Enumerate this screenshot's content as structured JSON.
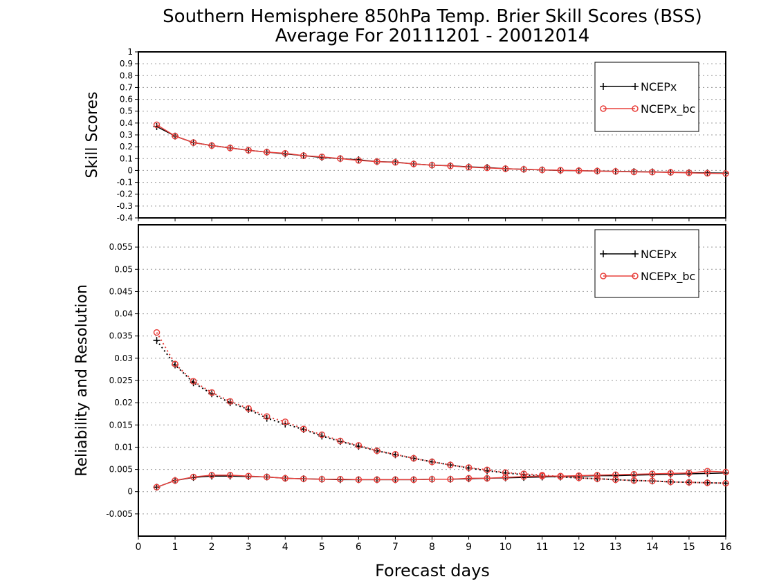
{
  "title_line1": "Southern Hemisphere 850hPa Temp. Brier Skill Scores (BSS)",
  "title_line2": "Average For 20111201 - 20012014",
  "xlabel": "Forecast days",
  "colors": {
    "ncep": "#000000",
    "bc": "#e8403c",
    "grid": "#999999"
  },
  "chart_data": [
    {
      "type": "line",
      "ylabel": "Skill Scores",
      "xlim": [
        0,
        16
      ],
      "ylim": [
        -0.4,
        1
      ],
      "xticks": [
        "0",
        "1",
        "2",
        "3",
        "4",
        "5",
        "6",
        "7",
        "8",
        "9",
        "10",
        "11",
        "12",
        "13",
        "14",
        "15",
        "16"
      ],
      "yticks": [
        "-0.4",
        "-0.3",
        "-0.2",
        "-0.1",
        "0",
        "0.1",
        "0.2",
        "0.3",
        "0.4",
        "0.5",
        "0.6",
        "0.7",
        "0.8",
        "0.9",
        "1"
      ],
      "grid": true,
      "legend": "top-right",
      "x": [
        0.5,
        1,
        1.5,
        2,
        2.5,
        3,
        3.5,
        4,
        4.5,
        5,
        5.5,
        6,
        6.5,
        7,
        7.5,
        8,
        8.5,
        9,
        9.5,
        10,
        10.5,
        11,
        11.5,
        12,
        12.5,
        13,
        13.5,
        14,
        14.5,
        15,
        15.5,
        16
      ],
      "series": [
        {
          "name": "NCEPx",
          "style": "solid",
          "marker": "plus",
          "values": [
            0.37,
            0.29,
            0.235,
            0.21,
            0.19,
            0.17,
            0.155,
            0.14,
            0.125,
            0.11,
            0.1,
            0.09,
            0.075,
            0.07,
            0.055,
            0.045,
            0.04,
            0.03,
            0.025,
            0.015,
            0.01,
            0.005,
            0.0,
            -0.002,
            -0.005,
            -0.008,
            -0.01,
            -0.012,
            -0.015,
            -0.018,
            -0.02,
            -0.022
          ]
        },
        {
          "name": "NCEPx_bc",
          "style": "solid",
          "marker": "circle",
          "values": [
            0.385,
            0.29,
            0.235,
            0.21,
            0.19,
            0.17,
            0.155,
            0.145,
            0.125,
            0.115,
            0.1,
            0.085,
            0.075,
            0.068,
            0.055,
            0.045,
            0.038,
            0.028,
            0.022,
            0.015,
            0.01,
            0.005,
            0.002,
            -0.002,
            -0.005,
            -0.008,
            -0.012,
            -0.014,
            -0.016,
            -0.02,
            -0.024,
            -0.026
          ]
        }
      ]
    },
    {
      "type": "line",
      "ylabel": "Reliability and Resolution",
      "xlim": [
        0,
        16
      ],
      "ylim": [
        -0.01,
        0.06
      ],
      "xticks": [
        "0",
        "1",
        "2",
        "3",
        "4",
        "5",
        "6",
        "7",
        "8",
        "9",
        "10",
        "11",
        "12",
        "13",
        "14",
        "15",
        "16"
      ],
      "yticks": [
        "-0.005",
        "0",
        "0.005",
        "0.01",
        "0.015",
        "0.02",
        "0.025",
        "0.03",
        "0.035",
        "0.04",
        "0.045",
        "0.05",
        "0.055"
      ],
      "grid": true,
      "legend": "top-right",
      "x": [
        0.5,
        1,
        1.5,
        2,
        2.5,
        3,
        3.5,
        4,
        4.5,
        5,
        5.5,
        6,
        6.5,
        7,
        7.5,
        8,
        8.5,
        9,
        9.5,
        10,
        10.5,
        11,
        11.5,
        12,
        12.5,
        13,
        13.5,
        14,
        14.5,
        15,
        15.5,
        16
      ],
      "series": [
        {
          "name": "NCEPx",
          "role": "reliability",
          "style": "solid",
          "marker": "plus",
          "values": [
            0.001,
            0.0025,
            0.0032,
            0.0035,
            0.0035,
            0.0034,
            0.0033,
            0.003,
            0.0029,
            0.0028,
            0.0027,
            0.0027,
            0.0027,
            0.0027,
            0.0027,
            0.0028,
            0.0028,
            0.0029,
            0.003,
            0.0031,
            0.0032,
            0.0033,
            0.0034,
            0.0035,
            0.0036,
            0.0036,
            0.0037,
            0.0038,
            0.0039,
            0.004,
            0.0041,
            0.0042
          ]
        },
        {
          "name": "NCEPx",
          "role": "resolution",
          "style": "dotted",
          "marker": "plus",
          "values": [
            0.034,
            0.0285,
            0.0245,
            0.022,
            0.02,
            0.0185,
            0.0165,
            0.0152,
            0.014,
            0.0125,
            0.0113,
            0.0102,
            0.0092,
            0.0083,
            0.0075,
            0.0067,
            0.006,
            0.0053,
            0.0047,
            0.0042,
            0.0038,
            0.0035,
            0.0033,
            0.0031,
            0.0029,
            0.0027,
            0.0025,
            0.0024,
            0.0022,
            0.0021,
            0.002,
            0.0019
          ]
        },
        {
          "name": "NCEPx_bc",
          "role": "reliability",
          "style": "solid",
          "marker": "circle",
          "values": [
            0.001,
            0.0025,
            0.0033,
            0.0037,
            0.0037,
            0.0035,
            0.0033,
            0.003,
            0.0029,
            0.0028,
            0.0028,
            0.0027,
            0.0027,
            0.0027,
            0.0027,
            0.0028,
            0.0028,
            0.003,
            0.003,
            0.0032,
            0.0034,
            0.0035,
            0.0035,
            0.0036,
            0.0037,
            0.0038,
            0.0039,
            0.004,
            0.0041,
            0.0042,
            0.0046,
            0.0044
          ]
        },
        {
          "name": "NCEPx_bc",
          "role": "resolution",
          "style": "dotted",
          "marker": "circle",
          "values": [
            0.0358,
            0.0287,
            0.0248,
            0.0223,
            0.0203,
            0.0187,
            0.0169,
            0.0157,
            0.0141,
            0.0128,
            0.0114,
            0.0104,
            0.0092,
            0.0084,
            0.0075,
            0.0067,
            0.006,
            0.0054,
            0.0049,
            0.0043,
            0.004,
            0.0037,
            0.0034,
            0.0031,
            0.0029,
            0.0027,
            0.0025,
            0.0024,
            0.0022,
            0.0021,
            0.002,
            0.0019
          ]
        }
      ]
    }
  ]
}
